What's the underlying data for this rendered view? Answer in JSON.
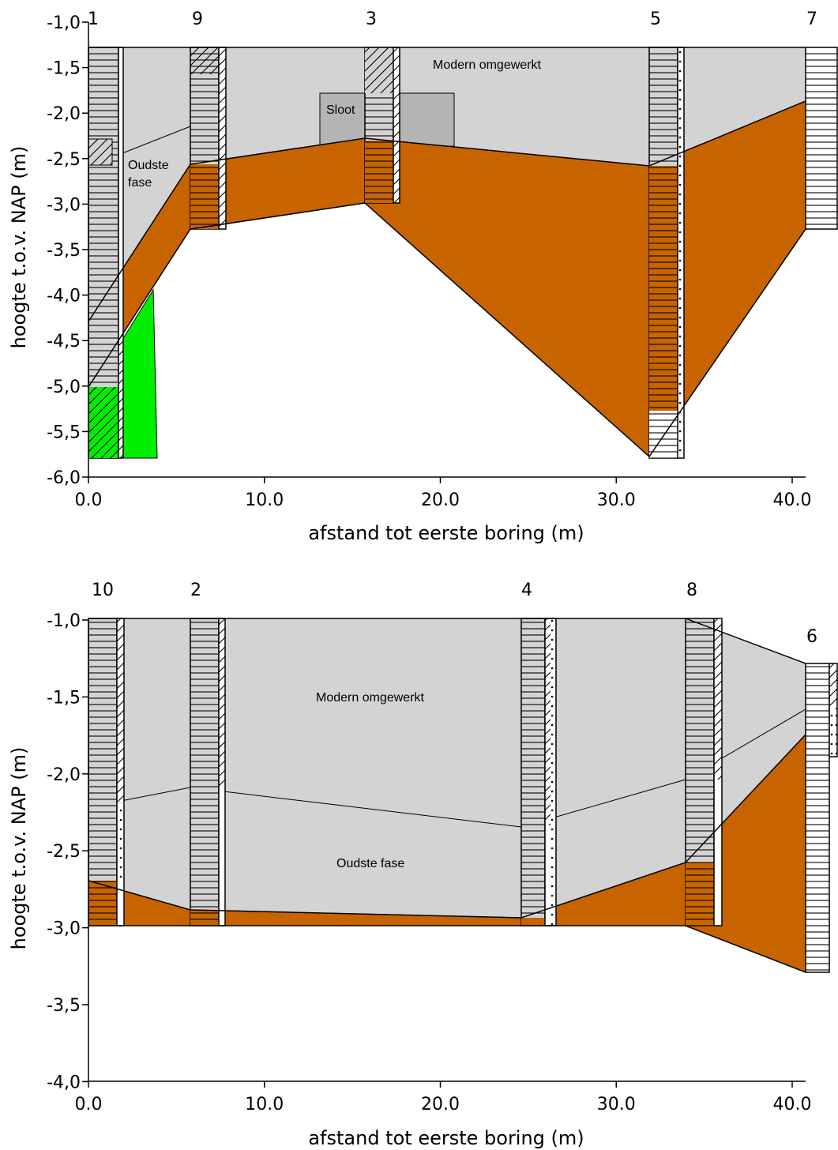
{
  "colors": {
    "modern": "#d3d3d3",
    "layer_orange": "#c86400",
    "layer_green": "#00ee00",
    "ditch": "#b4b4b4",
    "ink": "#000000",
    "core_fill": "#ffffff"
  },
  "top": {
    "ylabel": "hoogte t.o.v. NAP (m)",
    "xlabel": "afstand tot eerste boring (m)",
    "yticks": [
      "-1,0",
      "-1,5",
      "-2,0",
      "-2,5",
      "-3,0",
      "-3,5",
      "-4,0",
      "-4,5",
      "-5,0",
      "-5,5",
      "-6,0"
    ],
    "xticks": [
      "0.0",
      "10.0",
      "20.0",
      "30.0",
      "40.0"
    ],
    "borings": [
      "1",
      "9",
      "3",
      "5",
      "7"
    ],
    "labels": {
      "modern": "Modern omgewerkt",
      "ditch": "Sloot",
      "oldest_1": "Oudste",
      "oldest_2": "fase"
    }
  },
  "bottom": {
    "ylabel": "hoogte t.o.v. NAP (m)",
    "xlabel": "afstand tot eerste boring (m)",
    "yticks": [
      "-1,0",
      "-1,5",
      "-2,0",
      "-2,5",
      "-3,0",
      "-3,5",
      "-4,0"
    ],
    "xticks": [
      "0.0",
      "10.0",
      "20.0",
      "30.0",
      "40.0"
    ],
    "borings": [
      "10",
      "2",
      "4",
      "8",
      "6"
    ],
    "labels": {
      "modern": "Modern omgewerkt",
      "oldest": "Oudste fase"
    }
  }
}
